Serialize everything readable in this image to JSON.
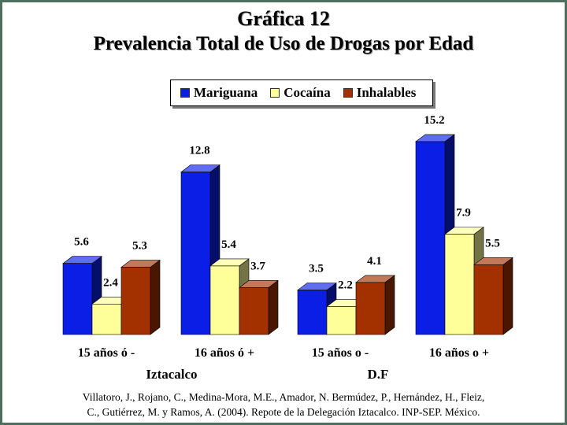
{
  "chart_data": {
    "type": "bar",
    "title": "Gráfica 12",
    "subtitle": "Prevalencia Total de Uso de Drogas por Edad",
    "categories": [
      "15 años ó -",
      "16 años ó +",
      "15 años o -",
      "16 años o +"
    ],
    "groups": [
      {
        "label": "Iztacalco",
        "categories": [
          0,
          1
        ]
      },
      {
        "label": "D.F",
        "categories": [
          2,
          3
        ]
      }
    ],
    "series": [
      {
        "name": "Mariguana",
        "color": "#0a1ee6",
        "values": [
          5.6,
          12.8,
          3.5,
          15.2
        ]
      },
      {
        "name": "Cocaína",
        "color": "#ffff99",
        "values": [
          2.4,
          5.4,
          2.2,
          7.9
        ]
      },
      {
        "name": "Inhalables",
        "color": "#a33100",
        "values": [
          5.3,
          3.7,
          4.1,
          5.5
        ]
      }
    ],
    "value_labels": [
      [
        "5.6",
        "12.8",
        "3.5",
        "15.2"
      ],
      [
        "2.4",
        "5.4",
        "2.2",
        "7.9"
      ],
      [
        "5.3",
        "3.7",
        "4.1",
        "5.5"
      ]
    ],
    "ylim": [
      0,
      16
    ],
    "legend_position": "top",
    "grid": false,
    "style": "3d"
  },
  "source": {
    "line1": "Villatoro, J., Rojano, C., Medina-Mora, M.E., Amador, N. Bermúdez, P., Hernández, H., Fleiz,",
    "line2": "C., Gutiérrez, M. y Ramos, A. (2004). Repote de la Delegación Iztacalco. INP-SEP. México."
  }
}
